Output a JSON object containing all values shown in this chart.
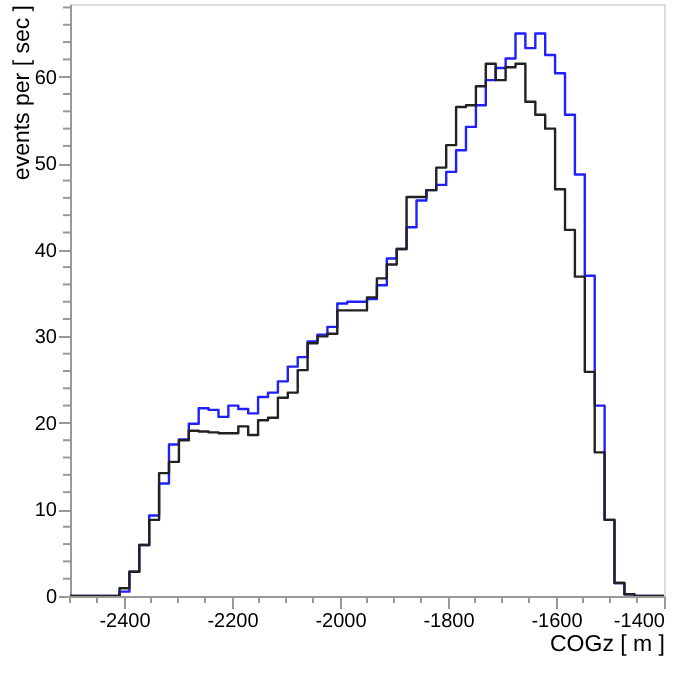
{
  "chart_data": {
    "type": "histogram",
    "xlabel": "COGz [ m ]",
    "ylabel": "events per [ sec ]",
    "bins": [
      -2500,
      -2481.7,
      -2463.3,
      -2445,
      -2426.7,
      -2408.3,
      -2390,
      -2371.7,
      -2353.3,
      -2335,
      -2316.7,
      -2298.3,
      -2280,
      -2261.7,
      -2243.3,
      -2225,
      -2206.7,
      -2188.3,
      -2170,
      -2151.7,
      -2133.3,
      -2115,
      -2096.7,
      -2078.3,
      -2060,
      -2041.7,
      -2023.3,
      -2005,
      -1986.7,
      -1968.3,
      -1950,
      -1931.7,
      -1913.3,
      -1895,
      -1876.7,
      -1858.3,
      -1840,
      -1821.7,
      -1803.3,
      -1785,
      -1766.7,
      -1748.3,
      -1730,
      -1711.7,
      -1693.3,
      -1675,
      -1656.7,
      -1638.3,
      -1620,
      -1601.7,
      -1583.3,
      -1565,
      -1546.7,
      -1528.3,
      -1510,
      -1491.7,
      -1473.3,
      -1455,
      -1436.7,
      -1418.3,
      -1400
    ],
    "series": [
      {
        "color": "#2020ff",
        "values": [
          0,
          0,
          0,
          0,
          0,
          0.5,
          2.8,
          5.9,
          9.3,
          13.0,
          17.5,
          18.1,
          19.9,
          21.7,
          21.5,
          20.7,
          22.0,
          21.6,
          21.1,
          23.0,
          23.5,
          24.8,
          26.5,
          27.6,
          29.4,
          30.2,
          31.1,
          33.8,
          34.0,
          34.0,
          34.3,
          35.9,
          39.0,
          40.1,
          42.6,
          45.7,
          46.9,
          47.5,
          49.0,
          51.5,
          54.2,
          56.7,
          59.6,
          61.0,
          62.1,
          65.0,
          63.3,
          65.0,
          62.5,
          60.4,
          55.6,
          48.7,
          37.0,
          22.0,
          8.8,
          1.5,
          0.2,
          0,
          0,
          0
        ]
      },
      {
        "color": "#222222",
        "values": [
          0,
          0,
          0,
          0,
          0,
          0.9,
          2.8,
          5.9,
          8.8,
          14.2,
          15.5,
          18.0,
          19.1,
          19.0,
          18.9,
          18.8,
          18.8,
          19.6,
          18.6,
          20.3,
          20.6,
          22.9,
          23.5,
          26.1,
          29.2,
          30.0,
          30.3,
          33.0,
          33.0,
          33.0,
          34.5,
          36.7,
          38.3,
          40.1,
          46.1,
          46.1,
          46.9,
          49.5,
          52.1,
          56.5,
          56.7,
          58.9,
          61.5,
          59.6,
          61.1,
          61.5,
          57.1,
          55.6,
          54.0,
          47.0,
          42.3,
          36.9,
          25.9,
          16.6,
          8.8,
          1.5,
          0.2,
          0,
          0,
          0
        ]
      }
    ],
    "xlim": [
      -2500,
      -1400
    ],
    "xticks": [
      {
        "value": -2500,
        "label": null
      },
      {
        "value": -2450,
        "label": null
      },
      -2400,
      {
        "value": -2350,
        "label": null
      },
      {
        "value": -2300,
        "label": null
      },
      {
        "value": -2250,
        "label": null
      },
      -2200,
      {
        "value": -2150,
        "label": null
      },
      {
        "value": -2100,
        "label": null
      },
      {
        "value": -2050,
        "label": null
      },
      -2000,
      {
        "value": -1950,
        "label": null
      },
      {
        "value": -1900,
        "label": null
      },
      {
        "value": -1850,
        "label": null
      },
      -1800,
      {
        "value": -1750,
        "label": null
      },
      {
        "value": -1700,
        "label": null
      },
      {
        "value": -1650,
        "label": null
      },
      -1600,
      {
        "value": -1550,
        "label": null
      },
      {
        "value": -1500,
        "label": null
      },
      {
        "value": -1450,
        "label": null
      },
      -1400
    ],
    "ylim": [
      0,
      68.4
    ],
    "yticks": [
      0,
      {
        "value": 2,
        "label": null
      },
      {
        "value": 4,
        "label": null
      },
      {
        "value": 6,
        "label": null
      },
      {
        "value": 8,
        "label": null
      },
      10,
      {
        "value": 12,
        "label": null
      },
      {
        "value": 14,
        "label": null
      },
      {
        "value": 16,
        "label": null
      },
      {
        "value": 18,
        "label": null
      },
      20,
      {
        "value": 22,
        "label": null
      },
      {
        "value": 24,
        "label": null
      },
      {
        "value": 26,
        "label": null
      },
      {
        "value": 28,
        "label": null
      },
      30,
      {
        "value": 32,
        "label": null
      },
      {
        "value": 34,
        "label": null
      },
      {
        "value": 36,
        "label": null
      },
      {
        "value": 38,
        "label": null
      },
      40,
      {
        "value": 42,
        "label": null
      },
      {
        "value": 44,
        "label": null
      },
      {
        "value": 46,
        "label": null
      },
      {
        "value": 48,
        "label": null
      },
      50,
      {
        "value": 52,
        "label": null
      },
      {
        "value": 54,
        "label": null
      },
      {
        "value": 56,
        "label": null
      },
      {
        "value": 58,
        "label": null
      },
      60,
      {
        "value": 62,
        "label": null
      },
      {
        "value": 64,
        "label": null
      },
      {
        "value": 66,
        "label": null
      },
      {
        "value": 68,
        "label": null
      }
    ]
  }
}
